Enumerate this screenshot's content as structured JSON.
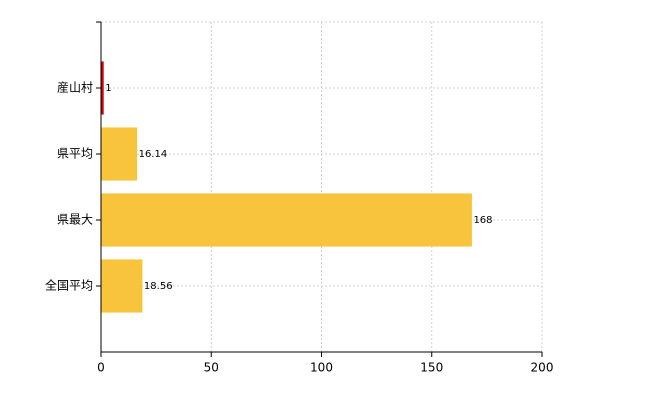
{
  "chart_data": {
    "type": "bar",
    "orientation": "horizontal",
    "categories": [
      "産山村",
      "県平均",
      "県最大",
      "全国平均"
    ],
    "values": [
      1,
      16.14,
      168,
      18.56
    ],
    "colors": [
      "#d40000",
      "#f8c43c",
      "#f8c43c",
      "#f8c43c"
    ],
    "xlim": [
      0,
      200
    ],
    "xticks": [
      0,
      50,
      100,
      150,
      200
    ],
    "grid": true
  }
}
